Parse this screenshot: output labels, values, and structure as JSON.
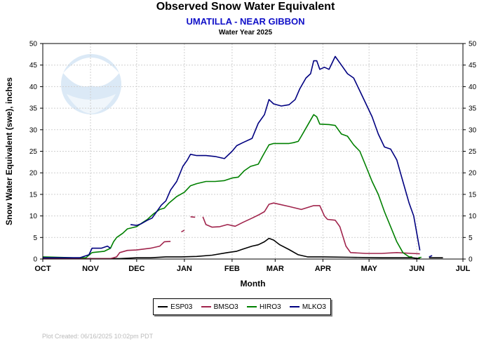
{
  "header": {
    "title": "Observed Snow Water Equivalent",
    "station": "UMATILLA - NEAR GIBBON",
    "water_year": "Water Year 2025"
  },
  "logo": {
    "text": "NOAA",
    "icon": "noaa-logo"
  },
  "footer": {
    "plot_created": "Plot Created:  06/16/2025 10:02pm PDT"
  },
  "chart_data": {
    "type": "line",
    "xlabel": "Month",
    "ylabel": "Snow Water Equivalent (swe),  inches",
    "ylim": [
      0,
      50
    ],
    "yticks": [
      0,
      5,
      10,
      15,
      20,
      25,
      30,
      35,
      40,
      45,
      50
    ],
    "x_unit": "days since Oct 1",
    "xlim": [
      0,
      273
    ],
    "xticks": [
      {
        "label": "OCT",
        "day": 0
      },
      {
        "label": "NOV",
        "day": 31
      },
      {
        "label": "DEC",
        "day": 61
      },
      {
        "label": "JAN",
        "day": 92
      },
      {
        "label": "FEB",
        "day": 123
      },
      {
        "label": "MAR",
        "day": 151
      },
      {
        "label": "APR",
        "day": 182
      },
      {
        "label": "MAY",
        "day": 212
      },
      {
        "label": "JUN",
        "day": 243
      },
      {
        "label": "JUL",
        "day": 273
      }
    ],
    "grid": true,
    "legend_position": "bottom",
    "series": [
      {
        "name": "ESP03",
        "color": "#000000",
        "segments": [
          [
            [
              0,
              0.1
            ],
            [
              30,
              0.1
            ],
            [
              50,
              0.1
            ],
            [
              61,
              0.3
            ],
            [
              70,
              0.3
            ],
            [
              80,
              0.5
            ],
            [
              90,
              0.5
            ],
            [
              100,
              0.6
            ],
            [
              110,
              0.9
            ],
            [
              120,
              1.5
            ],
            [
              126,
              1.8
            ],
            [
              130,
              2.3
            ],
            [
              136,
              3.0
            ],
            [
              140,
              3.3
            ],
            [
              144,
              4.0
            ],
            [
              147,
              4.8
            ],
            [
              150,
              4.4
            ],
            [
              154,
              3.3
            ],
            [
              160,
              2.2
            ],
            [
              166,
              1.0
            ],
            [
              172,
              0.5
            ],
            [
              182,
              0.5
            ],
            [
              200,
              0.4
            ],
            [
              220,
              0.3
            ],
            [
              240,
              0.3
            ],
            [
              245,
              0.1
            ]
          ],
          [
            [
              251,
              0.3
            ],
            [
              260,
              0.3
            ]
          ]
        ]
      },
      {
        "name": "BMSO3",
        "color": "#a0244c",
        "segments": [
          [
            [
              0,
              0.1
            ],
            [
              30,
              0.1
            ],
            [
              44,
              0.1
            ],
            [
              48,
              0.5
            ],
            [
              50,
              1.5
            ],
            [
              55,
              2.0
            ],
            [
              61,
              2.1
            ],
            [
              70,
              2.5
            ],
            [
              76,
              3.0
            ],
            [
              79,
              4.0
            ],
            [
              83,
              4.1
            ]
          ],
          [
            [
              90,
              6.3
            ],
            [
              92,
              6.7
            ]
          ],
          [
            [
              96,
              9.8
            ],
            [
              99,
              9.7
            ]
          ],
          [
            [
              104,
              9.8
            ],
            [
              106,
              8.0
            ],
            [
              110,
              7.4
            ],
            [
              115,
              7.5
            ],
            [
              120,
              8.0
            ],
            [
              125,
              7.6
            ],
            [
              130,
              8.5
            ],
            [
              136,
              9.5
            ],
            [
              140,
              10.2
            ],
            [
              144,
              11.0
            ],
            [
              147,
              12.7
            ],
            [
              150,
              13.0
            ],
            [
              160,
              12.2
            ],
            [
              168,
              11.5
            ],
            [
              176,
              12.4
            ],
            [
              180,
              12.4
            ],
            [
              183,
              10.0
            ],
            [
              185,
              9.2
            ],
            [
              190,
              9.0
            ],
            [
              193,
              7.5
            ],
            [
              197,
              3.0
            ],
            [
              200,
              1.5
            ],
            [
              210,
              1.3
            ],
            [
              220,
              1.3
            ],
            [
              230,
              1.5
            ],
            [
              240,
              1.3
            ],
            [
              245,
              1.2
            ]
          ]
        ]
      },
      {
        "name": "HIRO3",
        "color": "#008000",
        "segments": [
          [
            [
              0,
              0.5
            ],
            [
              10,
              0.4
            ],
            [
              20,
              0.3
            ],
            [
              28,
              0.3
            ],
            [
              32,
              1.5
            ],
            [
              40,
              1.8
            ],
            [
              44,
              2.5
            ],
            [
              46,
              4.0
            ],
            [
              48,
              5.0
            ],
            [
              52,
              6.0
            ],
            [
              55,
              7.0
            ],
            [
              61,
              7.5
            ],
            [
              65,
              8.5
            ],
            [
              68,
              9.2
            ],
            [
              72,
              10.5
            ],
            [
              76,
              11.5
            ],
            [
              79,
              11.8
            ],
            [
              82,
              13.0
            ],
            [
              87,
              14.5
            ],
            [
              92,
              15.5
            ],
            [
              96,
              17.0
            ],
            [
              100,
              17.5
            ],
            [
              106,
              18.0
            ],
            [
              112,
              18.0
            ],
            [
              118,
              18.2
            ],
            [
              123,
              18.8
            ],
            [
              127,
              19.0
            ],
            [
              131,
              20.5
            ],
            [
              135,
              21.5
            ],
            [
              140,
              22.0
            ],
            [
              143,
              24.0
            ],
            [
              147,
              26.5
            ],
            [
              150,
              26.8
            ],
            [
              155,
              26.8
            ],
            [
              160,
              26.8
            ],
            [
              163,
              27.0
            ],
            [
              166,
              27.3
            ],
            [
              168,
              28.5
            ],
            [
              172,
              31.0
            ],
            [
              176,
              33.5
            ],
            [
              178,
              33.0
            ],
            [
              180,
              31.3
            ],
            [
              186,
              31.2
            ],
            [
              190,
              31.0
            ],
            [
              194,
              29.0
            ],
            [
              198,
              28.5
            ],
            [
              202,
              26.5
            ],
            [
              206,
              25.0
            ],
            [
              210,
              21.5
            ],
            [
              214,
              18.0
            ],
            [
              218,
              15.0
            ],
            [
              222,
              11.0
            ],
            [
              226,
              7.5
            ],
            [
              230,
              4.0
            ],
            [
              234,
              1.5
            ],
            [
              238,
              0.5
            ],
            [
              240,
              0.5
            ]
          ],
          [
            [
              244,
              0.3
            ],
            [
              246,
              0.4
            ]
          ]
        ]
      },
      {
        "name": "MLKO3",
        "color": "#000080",
        "segments": [
          [
            [
              0,
              0.3
            ],
            [
              10,
              0.3
            ],
            [
              24,
              0.3
            ],
            [
              30,
              1.0
            ],
            [
              32,
              2.5
            ],
            [
              38,
              2.5
            ],
            [
              42,
              3.0
            ],
            [
              44,
              2.5
            ]
          ],
          [
            [
              57,
              8.0
            ],
            [
              61,
              7.8
            ],
            [
              64,
              8.2
            ],
            [
              68,
              9.0
            ],
            [
              71,
              9.5
            ],
            [
              74,
              11.0
            ],
            [
              77,
              12.5
            ],
            [
              80,
              13.5
            ],
            [
              83,
              16.0
            ],
            [
              87,
              18.0
            ],
            [
              91,
              21.5
            ],
            [
              94,
              23.0
            ],
            [
              96,
              24.3
            ],
            [
              100,
              24.0
            ],
            [
              106,
              24.0
            ],
            [
              112,
              23.8
            ],
            [
              118,
              23.3
            ],
            [
              123,
              25.0
            ],
            [
              126,
              26.3
            ],
            [
              130,
              27.0
            ],
            [
              136,
              28.0
            ],
            [
              140,
              31.5
            ],
            [
              144,
              33.5
            ],
            [
              147,
              37.0
            ],
            [
              150,
              36.0
            ],
            [
              155,
              35.5
            ],
            [
              160,
              35.8
            ],
            [
              164,
              37.0
            ],
            [
              167,
              39.5
            ],
            [
              171,
              42.0
            ],
            [
              174,
              43.0
            ],
            [
              176,
              46.0
            ],
            [
              178,
              46.0
            ],
            [
              180,
              44.0
            ],
            [
              183,
              44.5
            ],
            [
              186,
              44.0
            ],
            [
              188,
              45.5
            ],
            [
              190,
              47.0
            ],
            [
              194,
              45.0
            ],
            [
              198,
              43.0
            ],
            [
              202,
              42.0
            ],
            [
              206,
              39.0
            ],
            [
              210,
              36.0
            ],
            [
              214,
              33.0
            ],
            [
              218,
              29.0
            ],
            [
              222,
              26.0
            ],
            [
              226,
              25.5
            ],
            [
              230,
              23.0
            ],
            [
              234,
              18.0
            ],
            [
              238,
              13.0
            ],
            [
              241,
              10.0
            ],
            [
              243,
              6.0
            ],
            [
              245,
              2.0
            ]
          ],
          [
            [
              251,
              0.5
            ],
            [
              253,
              0.8
            ]
          ]
        ]
      }
    ]
  }
}
